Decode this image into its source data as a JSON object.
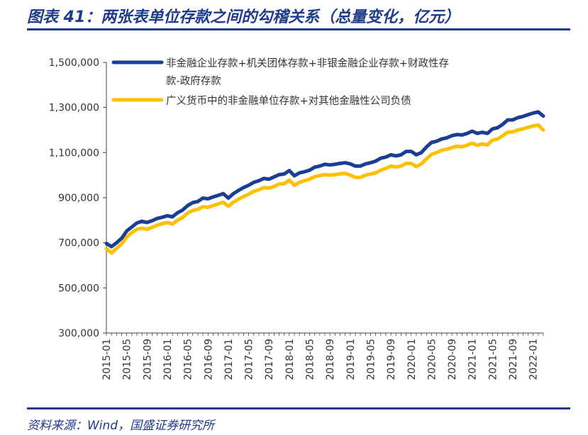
{
  "figure": {
    "title": "图表 41：两张表单位存款之间的勾稽关系（总量变化，亿元）",
    "source": "资料来源：Wind，国盛证券研究所"
  },
  "chart_data": {
    "type": "line",
    "xlabel": "",
    "ylabel": "",
    "ylim": [
      300000,
      1500000
    ],
    "yticks": [
      "1,500,000",
      "1,300,000",
      "1,100,000",
      "900,000",
      "700,000",
      "500,000",
      "300,000"
    ],
    "xticks": [
      "2015-01",
      "2015-05",
      "2015-09",
      "2016-01",
      "2016-05",
      "2016-09",
      "2017-01",
      "2017-05",
      "2017-09",
      "2018-01",
      "2018-05",
      "2018-09",
      "2019-01",
      "2019-05",
      "2019-09",
      "2020-01",
      "2020-05",
      "2020-09",
      "2021-01",
      "2021-05",
      "2021-09",
      "2022-01"
    ],
    "grid": false,
    "legend_position": "top-left",
    "series": [
      {
        "name": "非金融企业存款+机关团体存款+非银金融企业存款+财政性存款-政府存款",
        "color": "#1a3e93",
        "values": [
          697000,
          683000,
          700000,
          720000,
          752000,
          770000,
          788000,
          795000,
          790000,
          798000,
          808000,
          813000,
          820000,
          815000,
          833000,
          845000,
          865000,
          878000,
          883000,
          898000,
          895000,
          903000,
          910000,
          918000,
          898000,
          918000,
          932000,
          945000,
          955000,
          968000,
          975000,
          985000,
          982000,
          992000,
          1002000,
          1005000,
          1020000,
          997000,
          1010000,
          1015000,
          1022000,
          1035000,
          1040000,
          1048000,
          1045000,
          1048000,
          1052000,
          1055000,
          1050000,
          1040000,
          1040000,
          1050000,
          1055000,
          1062000,
          1075000,
          1080000,
          1090000,
          1085000,
          1090000,
          1105000,
          1105000,
          1090000,
          1100000,
          1125000,
          1145000,
          1150000,
          1160000,
          1165000,
          1175000,
          1180000,
          1178000,
          1185000,
          1195000,
          1185000,
          1190000,
          1185000,
          1205000,
          1210000,
          1225000,
          1245000,
          1245000,
          1255000,
          1260000,
          1268000,
          1275000,
          1280000,
          1262000
        ]
      },
      {
        "name": "广义货币中的非金融单位存款+对其他金融性公司负债",
        "color": "#ffc000",
        "values": [
          675000,
          655000,
          675000,
          695000,
          725000,
          745000,
          760000,
          765000,
          760000,
          768000,
          778000,
          785000,
          790000,
          783000,
          800000,
          812000,
          832000,
          843000,
          848000,
          860000,
          857000,
          865000,
          872000,
          880000,
          862000,
          880000,
          893000,
          905000,
          915000,
          928000,
          935000,
          945000,
          942000,
          950000,
          960000,
          962000,
          978000,
          955000,
          968000,
          975000,
          982000,
          993000,
          998000,
          1002000,
          1000000,
          1002000,
          1006000,
          1008000,
          1000000,
          990000,
          990000,
          1000000,
          1005000,
          1010000,
          1022000,
          1030000,
          1040000,
          1036000,
          1040000,
          1052000,
          1052000,
          1038000,
          1050000,
          1072000,
          1092000,
          1100000,
          1110000,
          1115000,
          1122000,
          1128000,
          1126000,
          1132000,
          1142000,
          1132000,
          1138000,
          1134000,
          1155000,
          1160000,
          1175000,
          1190000,
          1192000,
          1200000,
          1205000,
          1212000,
          1218000,
          1222000,
          1200000
        ]
      }
    ]
  }
}
